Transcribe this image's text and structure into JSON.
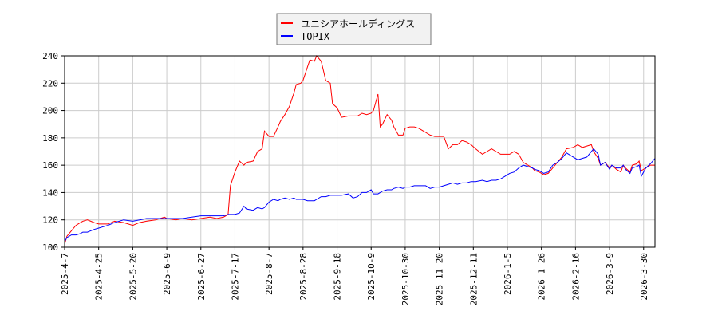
{
  "chart_data": {
    "type": "line",
    "title": "",
    "xlabel": "",
    "ylabel": "",
    "x_unit": "trading-day index from 2025-4-7",
    "xlim": [
      0,
      260
    ],
    "ylim": [
      100,
      240
    ],
    "yticks": [
      100,
      120,
      140,
      160,
      180,
      200,
      220,
      240
    ],
    "xticks": [
      0,
      15,
      30,
      45,
      60,
      75,
      90,
      105,
      120,
      135,
      150,
      165,
      180,
      195,
      210,
      225,
      240,
      255
    ],
    "xtick_labels": [
      "2025-4-7",
      "2025-4-25",
      "2025-5-20",
      "2025-6-9",
      "2025-6-27",
      "2025-7-17",
      "2025-8-7",
      "2025-8-28",
      "2025-9-18",
      "2025-10-9",
      "2025-10-30",
      "2025-11-20",
      "2025-12-11",
      "2026-1-5",
      "2026-1-26",
      "2026-2-16",
      "2026-3-9",
      "2026-3-30"
    ],
    "grid": true,
    "legend_position": "top-center",
    "x": [
      0,
      1,
      3,
      5,
      7,
      8,
      10,
      13,
      15,
      19,
      22,
      26,
      30,
      33,
      36,
      40,
      44,
      45,
      49,
      52,
      56,
      60,
      64,
      67,
      70,
      72,
      73,
      75,
      77,
      79,
      80,
      83,
      85,
      87,
      88,
      90,
      92,
      94,
      95,
      97,
      99,
      101,
      102,
      104,
      105,
      107,
      108,
      110,
      111,
      113,
      114,
      115,
      117,
      118,
      120,
      122,
      125,
      127,
      129,
      131,
      133,
      135,
      136,
      138,
      139,
      140,
      142,
      144,
      145,
      147,
      149,
      150,
      152,
      154,
      156,
      158,
      159,
      161,
      163,
      165,
      167,
      169,
      171,
      173,
      175,
      177,
      179,
      181,
      184,
      186,
      188,
      190,
      192,
      194,
      196,
      198,
      200,
      202,
      204,
      206,
      207,
      209,
      211,
      213,
      215,
      217,
      219,
      221,
      224,
      226,
      228,
      230,
      232,
      233,
      235,
      236,
      238,
      240,
      241,
      243,
      245,
      246,
      247,
      249,
      250,
      252,
      253,
      254,
      256,
      258,
      260
    ],
    "series": [
      {
        "name": "ユニシアホールディングス",
        "color": "#ff0000",
        "values": [
          102,
          108,
          112,
          116,
          118,
          119,
          120,
          118,
          117,
          117,
          119,
          118,
          116,
          118,
          119,
          120,
          122,
          121,
          120,
          121,
          120,
          121,
          122,
          121,
          122,
          124,
          145,
          155,
          163,
          160,
          162,
          163,
          170,
          172,
          185,
          181,
          181,
          188,
          192,
          197,
          203,
          213,
          219,
          220,
          222,
          232,
          237,
          236,
          240,
          236,
          229,
          222,
          220,
          205,
          202,
          195,
          196,
          196,
          196,
          198,
          197,
          198,
          200,
          212,
          188,
          190,
          197,
          193,
          188,
          182,
          182,
          187,
          188,
          188,
          187,
          185,
          184,
          182,
          181,
          181,
          181,
          172,
          175,
          175,
          178,
          177,
          175,
          172,
          168,
          170,
          172,
          170,
          168,
          168,
          168,
          170,
          168,
          162,
          160,
          158,
          156,
          155,
          153,
          154,
          158,
          162,
          166,
          172,
          173,
          175,
          173,
          174,
          175,
          170,
          165,
          160,
          162,
          158,
          160,
          157,
          155,
          160,
          158,
          155,
          160,
          161,
          163,
          156,
          158,
          160,
          160
        ]
      },
      {
        "name": "TOPIX",
        "color": "#0000ff",
        "values": [
          104,
          107,
          109,
          109,
          110,
          111,
          111,
          113,
          114,
          116,
          118,
          120,
          119,
          120,
          121,
          121,
          121,
          121,
          121,
          121,
          122,
          123,
          123,
          123,
          123,
          124,
          124,
          124,
          125,
          130,
          128,
          127,
          129,
          128,
          129,
          133,
          135,
          134,
          135,
          136,
          135,
          136,
          135,
          135,
          135,
          134,
          134,
          134,
          135,
          137,
          137,
          137,
          138,
          138,
          138,
          138,
          139,
          136,
          137,
          140,
          140,
          142,
          139,
          139,
          140,
          141,
          142,
          142,
          143,
          144,
          143,
          144,
          144,
          145,
          145,
          145,
          145,
          143,
          144,
          144,
          145,
          146,
          147,
          146,
          147,
          147,
          148,
          148,
          149,
          148,
          149,
          149,
          150,
          152,
          154,
          155,
          158,
          160,
          159,
          158,
          157,
          156,
          154,
          155,
          160,
          162,
          165,
          169,
          166,
          164,
          165,
          166,
          170,
          172,
          168,
          160,
          162,
          157,
          160,
          158,
          158,
          160,
          157,
          154,
          158,
          159,
          160,
          152,
          158,
          161,
          165
        ]
      }
    ]
  }
}
